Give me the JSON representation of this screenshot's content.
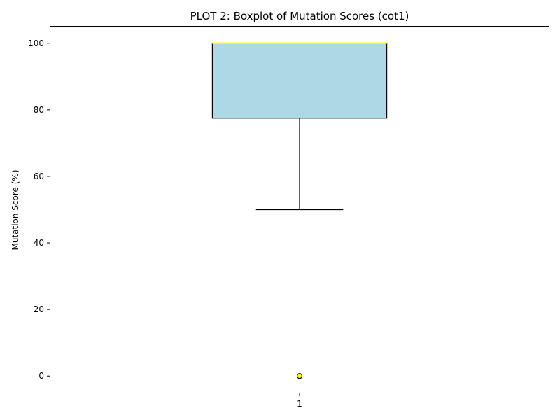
{
  "chart_data": {
    "type": "boxplot",
    "title": "PLOT 2: Boxplot of Mutation Scores (cot1)",
    "xlabel": "",
    "ylabel": "Mutation Score (%)",
    "categories": [
      "1"
    ],
    "ylim": [
      -5,
      105
    ],
    "yticks": [
      0,
      20,
      40,
      60,
      80,
      100
    ],
    "grid": false,
    "boxes": [
      {
        "category": "1",
        "whisker_low": 50,
        "q1": 77.5,
        "median": 100,
        "q3": 100,
        "whisker_high": 100,
        "outliers": [
          0
        ]
      }
    ],
    "colors": {
      "box_fill": "#add8e6",
      "box_edge": "#000000",
      "median": "#ffff00",
      "outlier_fill": "#ffff00",
      "outlier_edge": "#000000"
    }
  }
}
